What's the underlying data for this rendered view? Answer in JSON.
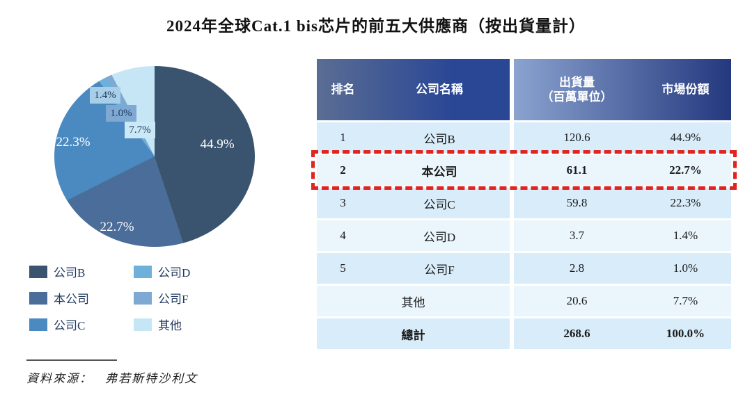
{
  "title": "2024年全球Cat.1 bis芯片的前五大供應商（按出貨量計）",
  "chart_data": {
    "type": "pie",
    "title": "2024年全球Cat.1 bis芯片的前五大供應商（按出貨量計）",
    "categories": [
      "公司B",
      "本公司",
      "公司C",
      "公司D",
      "公司F",
      "其他"
    ],
    "values": [
      44.9,
      22.7,
      22.3,
      1.4,
      1.0,
      7.7
    ],
    "colors": [
      "#3a546f",
      "#4a6d99",
      "#4b8ac1",
      "#6db1da",
      "#7da9d2",
      "#c7e6f5"
    ],
    "start_angle_deg": 0,
    "direction": "clockwise",
    "legend_position": "bottom-left"
  },
  "pie_labels": [
    "44.9%",
    "22.7%",
    "22.3%",
    "1.4%",
    "1.0%",
    "7.7%"
  ],
  "colors": {
    "box_company_d": "#a9cee8",
    "box_company_f": "#7fa9d3",
    "box_others": "#cbe8f6",
    "highlight_red": "#e0241f",
    "row_dark": "#d9ecf9",
    "row_light": "#eaf5fc"
  },
  "table": {
    "headers": {
      "rank": "排名",
      "company": "公司名稱",
      "shipment_line1": "出貨量",
      "shipment_line2": "（百萬單位）",
      "share": "市場份額"
    },
    "rows": [
      {
        "rank": "1",
        "company": "公司B",
        "shipment": "120.6",
        "share": "44.9%",
        "highlight": false
      },
      {
        "rank": "2",
        "company": "本公司",
        "shipment": "61.1",
        "share": "22.7%",
        "highlight": true
      },
      {
        "rank": "3",
        "company": "公司C",
        "shipment": "59.8",
        "share": "22.3%",
        "highlight": false
      },
      {
        "rank": "4",
        "company": "公司D",
        "shipment": "3.7",
        "share": "1.4%",
        "highlight": false
      },
      {
        "rank": "5",
        "company": "公司F",
        "shipment": "2.8",
        "share": "1.0%",
        "highlight": false
      },
      {
        "rank": "",
        "company": "其他",
        "shipment": "20.6",
        "share": "7.7%",
        "highlight": false
      },
      {
        "rank": "",
        "company": "總計",
        "shipment": "268.6",
        "share": "100.0%",
        "highlight": false
      }
    ]
  },
  "source": {
    "label": "資料來源：",
    "value": "弗若斯特沙利文"
  }
}
